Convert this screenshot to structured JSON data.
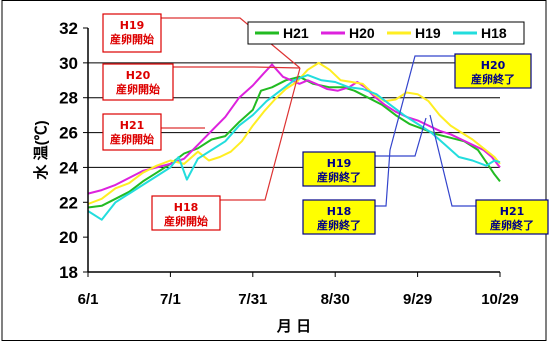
{
  "chart_data": {
    "type": "line",
    "xlabel": "月 日",
    "ylabel": "水 温(℃)",
    "x_tick_labels": [
      "6/1",
      "7/1",
      "7/31",
      "8/30",
      "9/29",
      "10/29"
    ],
    "x_tick_days": [
      0,
      30,
      60,
      90,
      120,
      150
    ],
    "xlim": [
      "6/1",
      "10/29"
    ],
    "ylim": [
      18,
      32
    ],
    "y_ticks": [
      18,
      20,
      22,
      24,
      26,
      28,
      30,
      32
    ],
    "grid": "horizontal at 24, 26, 28, 30",
    "legend_position": "top-right",
    "series": [
      {
        "name": "H21",
        "color": "#22bb22",
        "points": [
          [
            0,
            21.7
          ],
          [
            5,
            21.8
          ],
          [
            10,
            22.2
          ],
          [
            15,
            22.6
          ],
          [
            20,
            23.2
          ],
          [
            25,
            23.7
          ],
          [
            30,
            24.2
          ],
          [
            35,
            24.8
          ],
          [
            40,
            25.1
          ],
          [
            45,
            25.6
          ],
          [
            50,
            25.8
          ],
          [
            55,
            26.6
          ],
          [
            60,
            27.3
          ],
          [
            63,
            28.4
          ],
          [
            67,
            28.6
          ],
          [
            72,
            29.0
          ],
          [
            77,
            29.2
          ],
          [
            82,
            28.8
          ],
          [
            88,
            28.6
          ],
          [
            93,
            28.6
          ],
          [
            97,
            28.4
          ],
          [
            102,
            28.0
          ],
          [
            107,
            27.6
          ],
          [
            112,
            27.0
          ],
          [
            117,
            26.5
          ],
          [
            122,
            26.2
          ],
          [
            127,
            25.9
          ],
          [
            132,
            25.7
          ],
          [
            137,
            25.5
          ],
          [
            142,
            25.0
          ],
          [
            145,
            24.3
          ],
          [
            148,
            23.6
          ],
          [
            150,
            23.2
          ]
        ]
      },
      {
        "name": "H20",
        "color": "#dd22dd",
        "points": [
          [
            0,
            22.5
          ],
          [
            5,
            22.7
          ],
          [
            10,
            23.0
          ],
          [
            15,
            23.4
          ],
          [
            20,
            23.8
          ],
          [
            25,
            24.0
          ],
          [
            30,
            24.2
          ],
          [
            35,
            24.5
          ],
          [
            40,
            25.3
          ],
          [
            45,
            26.1
          ],
          [
            50,
            26.9
          ],
          [
            55,
            28.0
          ],
          [
            60,
            28.7
          ],
          [
            64,
            29.4
          ],
          [
            67,
            29.9
          ],
          [
            71,
            29.2
          ],
          [
            74,
            29.0
          ],
          [
            77,
            28.8
          ],
          [
            80,
            29.0
          ],
          [
            83,
            28.8
          ],
          [
            87,
            28.5
          ],
          [
            91,
            28.4
          ],
          [
            95,
            28.6
          ],
          [
            98,
            28.9
          ],
          [
            101,
            28.6
          ],
          [
            104,
            28.1
          ],
          [
            108,
            27.6
          ],
          [
            112,
            27.2
          ],
          [
            116,
            26.9
          ],
          [
            120,
            26.7
          ],
          [
            124,
            26.4
          ],
          [
            128,
            26.1
          ],
          [
            132,
            25.9
          ],
          [
            136,
            25.6
          ],
          [
            140,
            25.3
          ],
          [
            144,
            25.0
          ],
          [
            147,
            24.6
          ],
          [
            150,
            24.0
          ]
        ]
      },
      {
        "name": "H19",
        "color": "#ffee22",
        "points": [
          [
            0,
            21.9
          ],
          [
            5,
            22.2
          ],
          [
            10,
            22.8
          ],
          [
            15,
            23.1
          ],
          [
            20,
            23.7
          ],
          [
            25,
            24.1
          ],
          [
            30,
            24.4
          ],
          [
            35,
            24.2
          ],
          [
            40,
            24.9
          ],
          [
            44,
            24.4
          ],
          [
            48,
            24.6
          ],
          [
            52,
            24.9
          ],
          [
            56,
            25.5
          ],
          [
            60,
            26.4
          ],
          [
            64,
            27.2
          ],
          [
            68,
            27.9
          ],
          [
            72,
            28.5
          ],
          [
            76,
            28.9
          ],
          [
            80,
            29.6
          ],
          [
            84,
            30.0
          ],
          [
            88,
            29.6
          ],
          [
            92,
            29.0
          ],
          [
            96,
            28.9
          ],
          [
            100,
            28.8
          ],
          [
            104,
            28.2
          ],
          [
            108,
            27.8
          ],
          [
            112,
            27.9
          ],
          [
            116,
            28.3
          ],
          [
            120,
            28.2
          ],
          [
            124,
            27.8
          ],
          [
            128,
            27.0
          ],
          [
            132,
            26.4
          ],
          [
            136,
            26.0
          ],
          [
            140,
            25.6
          ],
          [
            144,
            25.1
          ],
          [
            148,
            24.6
          ],
          [
            150,
            24.2
          ]
        ]
      },
      {
        "name": "H18",
        "color": "#22dddd",
        "points": [
          [
            0,
            21.5
          ],
          [
            5,
            21.0
          ],
          [
            10,
            22.0
          ],
          [
            15,
            22.5
          ],
          [
            20,
            23.0
          ],
          [
            25,
            23.5
          ],
          [
            30,
            24.0
          ],
          [
            33,
            24.6
          ],
          [
            36,
            23.3
          ],
          [
            40,
            24.5
          ],
          [
            45,
            25.0
          ],
          [
            50,
            25.5
          ],
          [
            55,
            26.4
          ],
          [
            60,
            27.0
          ],
          [
            65,
            27.8
          ],
          [
            70,
            28.4
          ],
          [
            75,
            29.0
          ],
          [
            80,
            29.3
          ],
          [
            85,
            29.0
          ],
          [
            90,
            28.9
          ],
          [
            95,
            28.6
          ],
          [
            100,
            28.5
          ],
          [
            105,
            28.2
          ],
          [
            110,
            27.6
          ],
          [
            115,
            27.0
          ],
          [
            120,
            26.5
          ],
          [
            125,
            26.0
          ],
          [
            130,
            25.3
          ],
          [
            135,
            24.6
          ],
          [
            140,
            24.4
          ],
          [
            145,
            24.1
          ],
          [
            148,
            24.4
          ],
          [
            150,
            24.3
          ]
        ]
      }
    ],
    "annotations": [
      {
        "lines": [
          "H19",
          "産卵開始"
        ],
        "style": "red"
      },
      {
        "lines": [
          "H20",
          "産卵開始"
        ],
        "style": "red"
      },
      {
        "lines": [
          "H21",
          "産卵開始"
        ],
        "style": "red"
      },
      {
        "lines": [
          "H18",
          "産卵開始"
        ],
        "style": "red"
      },
      {
        "lines": [
          "H20",
          "産卵終了"
        ],
        "style": "yellow"
      },
      {
        "lines": [
          "H19",
          "産卵終了"
        ],
        "style": "yellow"
      },
      {
        "lines": [
          "H18",
          "産卵終了"
        ],
        "style": "yellow"
      },
      {
        "lines": [
          "H21",
          "産卵終了"
        ],
        "style": "yellow"
      }
    ],
    "annotation_colors": {
      "red_text": "#dd0000",
      "red_border": "#dd0000",
      "red_fill": "#ffffff",
      "red_leader": "#dd3333",
      "yellow_text": "#000088",
      "yellow_border": "#000088",
      "yellow_fill": "#ffff00",
      "yellow_leader": "#3344cc"
    }
  }
}
